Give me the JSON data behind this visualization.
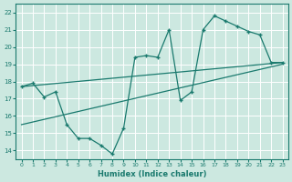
{
  "xlabel": "Humidex (Indice chaleur)",
  "bg_color": "#cce8e0",
  "line_color": "#1a7a6e",
  "grid_color": "#b8d8d0",
  "xlim": [
    -0.5,
    23.5
  ],
  "ylim": [
    13.5,
    22.5
  ],
  "xticks": [
    0,
    1,
    2,
    3,
    4,
    5,
    6,
    7,
    8,
    9,
    10,
    11,
    12,
    13,
    14,
    15,
    16,
    17,
    18,
    19,
    20,
    21,
    22,
    23
  ],
  "yticks": [
    14,
    15,
    16,
    17,
    18,
    19,
    20,
    21,
    22
  ],
  "zigzag_x": [
    0,
    1,
    2,
    3,
    4,
    5,
    6,
    7,
    8,
    9,
    10,
    11,
    12,
    13,
    14,
    15,
    16,
    17,
    18,
    19,
    20,
    21,
    22,
    23
  ],
  "zigzag_y": [
    17.7,
    17.9,
    17.1,
    17.4,
    15.5,
    14.7,
    14.7,
    14.3,
    13.8,
    15.3,
    19.4,
    19.5,
    19.4,
    21.0,
    16.9,
    17.4,
    21.0,
    21.8,
    21.5,
    21.2,
    20.9,
    20.7,
    19.1,
    19.1
  ],
  "line1_x": [
    0,
    23
  ],
  "line1_y": [
    17.7,
    19.1
  ],
  "line2_x": [
    0,
    23
  ],
  "line2_y": [
    15.5,
    19.0
  ]
}
